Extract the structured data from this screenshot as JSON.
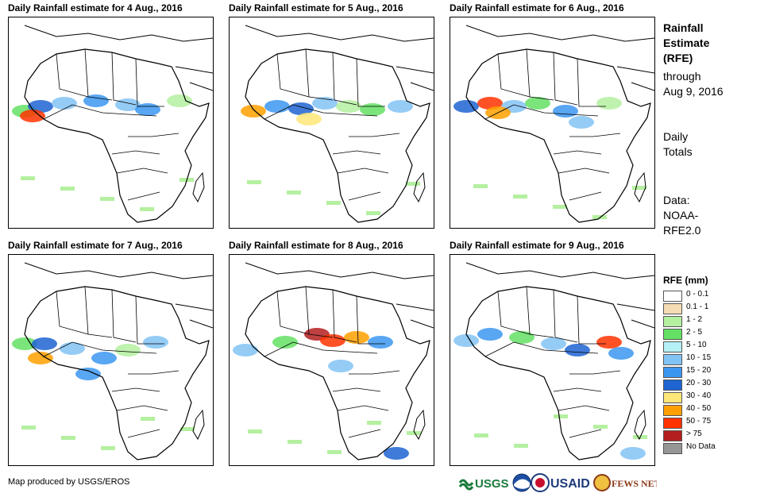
{
  "panels": [
    {
      "title": "Daily Rainfall estimate for 4 Aug., 2016"
    },
    {
      "title": "Daily Rainfall estimate for 5 Aug., 2016"
    },
    {
      "title": "Daily Rainfall estimate for 6 Aug., 2016"
    },
    {
      "title": "Daily Rainfall estimate for 7 Aug., 2016"
    },
    {
      "title": "Daily Rainfall estimate for 8 Aug., 2016"
    },
    {
      "title": "Daily Rainfall estimate for 9 Aug., 2016"
    }
  ],
  "sidebar": {
    "heading_line1": "Rainfall",
    "heading_line2": "Estimate",
    "heading_line3": "(RFE)",
    "through_line1": "through",
    "through_line2": "Aug 9, 2016",
    "totals_line1": "Daily",
    "totals_line2": "Totals",
    "source_line1": "Data:",
    "source_line2": "NOAA-",
    "source_line3": "RFE2.0"
  },
  "legend": {
    "title": "RFE (mm)",
    "items": [
      {
        "label": "0 - 0.1",
        "color": "#ffffff"
      },
      {
        "label": "0.1 - 1",
        "color": "#f5dcb4"
      },
      {
        "label": "1 - 2",
        "color": "#b4f0a0"
      },
      {
        "label": "2 - 5",
        "color": "#64e164"
      },
      {
        "label": "5 - 10",
        "color": "#b4f0f5"
      },
      {
        "label": "10 - 15",
        "color": "#82c3f5"
      },
      {
        "label": "15 - 20",
        "color": "#3c96f0"
      },
      {
        "label": "20 - 30",
        "color": "#1e64d2"
      },
      {
        "label": "30 - 40",
        "color": "#ffe678"
      },
      {
        "label": "40 - 50",
        "color": "#ffa000"
      },
      {
        "label": "50 - 75",
        "color": "#ff3200"
      },
      {
        "label": "> 75",
        "color": "#b41e1e"
      },
      {
        "label": "No Data",
        "color": "#969696"
      }
    ]
  },
  "footer": {
    "credit": "Map produced by USGS/EROS",
    "logos": [
      "USGS",
      "NOAA",
      "USAID",
      "FEWS NET"
    ]
  }
}
